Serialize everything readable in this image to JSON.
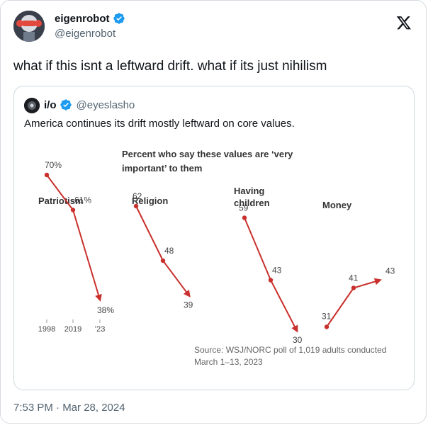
{
  "tweet": {
    "display_name": "eigenrobot",
    "handle": "@eigenrobot",
    "text": "what if this isnt a leftward drift. what if its just nihilism",
    "timestamp": "7:53 PM · Mar 28, 2024"
  },
  "quoted": {
    "display_name": "i/o",
    "handle": "@eyeslasho",
    "text": "America continues its drift mostly leftward on core values."
  },
  "colors": {
    "accent_red": "#c9302c",
    "verified_blue": "#1d9bf0"
  },
  "chart_data": {
    "type": "line",
    "title_line1": "Percent who say these values are ‘very",
    "title_line2": "important’ to them",
    "x": [
      "1998",
      "2019",
      "’23"
    ],
    "series": [
      {
        "name": "Patriotism",
        "values": [
          70,
          61,
          38
        ],
        "labels": [
          "70%",
          "61%",
          "38%"
        ]
      },
      {
        "name": "Religion",
        "values": [
          62,
          48,
          39
        ],
        "labels": [
          "62",
          "48",
          "39"
        ]
      },
      {
        "name_line1": "Having",
        "name_line2": "children",
        "values": [
          59,
          43,
          30
        ],
        "labels": [
          "59",
          "43",
          "30"
        ]
      },
      {
        "name": "Money",
        "values": [
          31,
          41,
          43
        ],
        "labels": [
          "31",
          "41",
          "43"
        ]
      }
    ],
    "source_line1": "Source: WSJ/NORC poll of 1,019 adults conducted",
    "source_line2": "March 1–13, 2023"
  }
}
